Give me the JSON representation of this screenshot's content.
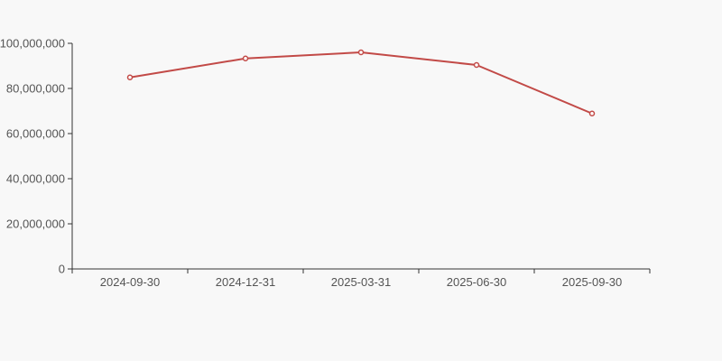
{
  "page": {
    "background_color": "#f8f8f8"
  },
  "chart_data": {
    "type": "line",
    "title": "",
    "xlabel": "",
    "ylabel": "",
    "x": [
      "2024-09-30",
      "2024-12-31",
      "2025-03-31",
      "2025-06-30",
      "2025-09-30"
    ],
    "series": [
      {
        "name": "series-1",
        "values": [
          84900000,
          93300000,
          96000000,
          90400000,
          68900000
        ]
      }
    ],
    "ylim": [
      0,
      100000000
    ],
    "y_ticks": [
      0,
      20000000,
      40000000,
      60000000,
      80000000,
      100000000
    ],
    "y_tick_labels": [
      "0",
      "20,000,000",
      "40,000,000",
      "60,000,000",
      "80,000,000",
      "100,000,000"
    ],
    "grid": false,
    "legend": false,
    "legend_position": "none",
    "line_color": "#c24a47",
    "marker_fill": "#ffffff",
    "marker_stroke": "#c24a47",
    "axis_color": "#333333",
    "tick_label_color": "#545454"
  }
}
